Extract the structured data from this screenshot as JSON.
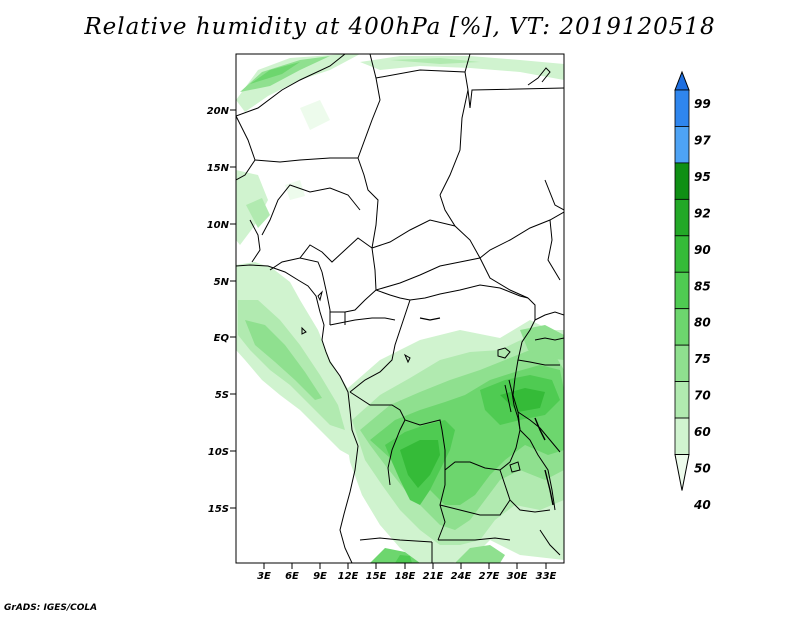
{
  "title": "Relative humidity at 400hPa [%], VT: 2019120518",
  "credit": "GrADS: IGES/COLA",
  "map": {
    "lat_labels": [
      "20N",
      "15N",
      "10N",
      "5N",
      "EQ",
      "5S",
      "10S",
      "15S"
    ],
    "lon_labels": [
      "3E",
      "6E",
      "9E",
      "12E",
      "15E",
      "18E",
      "21E",
      "24E",
      "27E",
      "30E",
      "33E"
    ]
  },
  "colorbar": {
    "labels": [
      "99",
      "97",
      "95",
      "92",
      "90",
      "85",
      "80",
      "75",
      "70",
      "60",
      "50",
      "40"
    ],
    "colors": [
      "#1e6fe0",
      "#2f86ee",
      "#4ea3f5",
      "#0f8f14",
      "#23a827",
      "#35bb38",
      "#4fcb52",
      "#6dd66e",
      "#8fe08f",
      "#b1eab0",
      "#d0f3cf",
      "#edfbec"
    ]
  }
}
